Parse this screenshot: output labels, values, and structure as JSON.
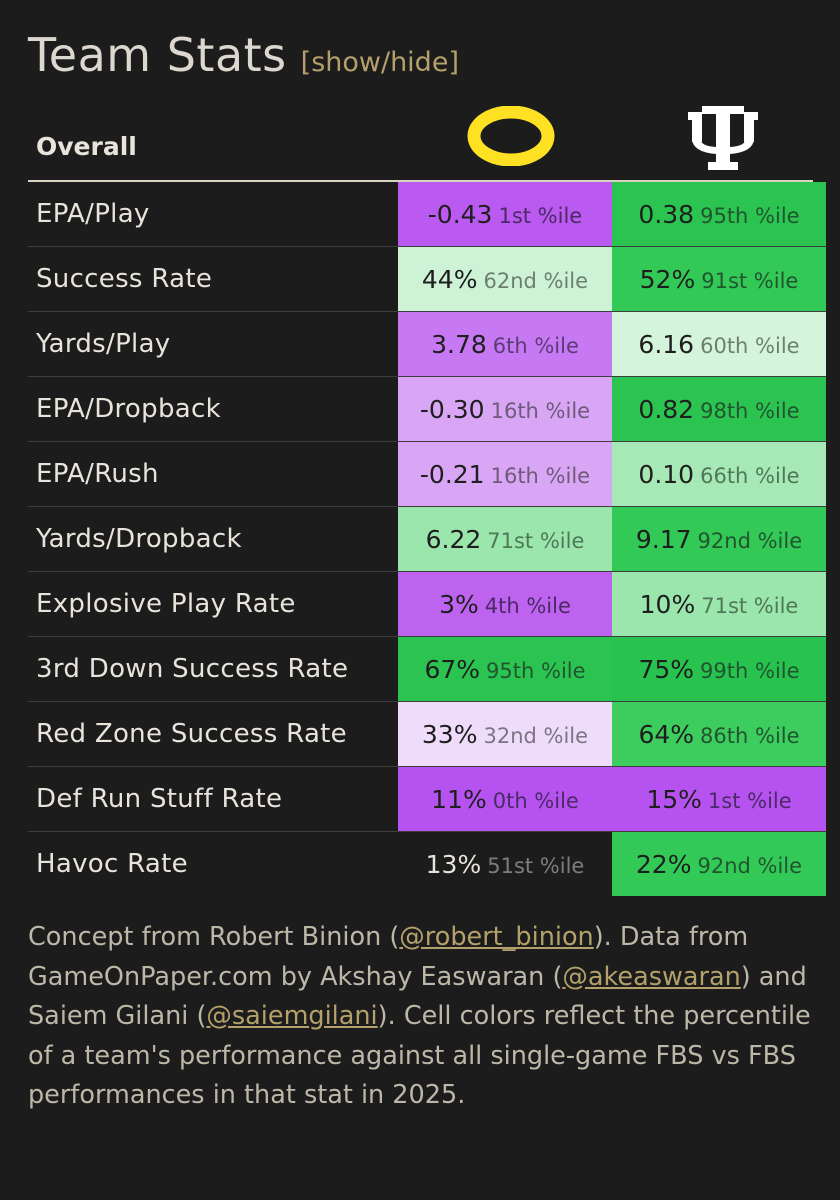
{
  "title": "Team Stats",
  "toggle": {
    "open": "[",
    "label": "show/hide",
    "close": "]"
  },
  "header": {
    "section_label": "Overall"
  },
  "teams": [
    {
      "logo": "oregon-o-logo",
      "color": "#fee123",
      "logo_text": "O"
    },
    {
      "logo": "indiana-iu-logo",
      "color": "#ffffff",
      "logo_text": "IU"
    }
  ],
  "rows": [
    {
      "stat": "EPA/Play",
      "a": {
        "value": "-0.43",
        "pct": "1st %ile",
        "bg": "#bb5af0",
        "fg": "#1e1e1e",
        "pfg": "#4b2a66"
      },
      "b": {
        "value": "0.38",
        "pct": "95th %ile",
        "bg": "#2bc451",
        "fg": "#1e1e1e",
        "pfg": "#21552f"
      }
    },
    {
      "stat": "Success Rate",
      "a": {
        "value": "44%",
        "pct": "62nd %ile",
        "bg": "#cdf2d6",
        "fg": "#1e1e1e",
        "pfg": "#6d8070"
      },
      "b": {
        "value": "52%",
        "pct": "91st %ile",
        "bg": "#33c957",
        "fg": "#1e1e1e",
        "pfg": "#21552f"
      }
    },
    {
      "stat": "Yards/Play",
      "a": {
        "value": "3.78",
        "pct": "6th %ile",
        "bg": "#c679f2",
        "fg": "#1e1e1e",
        "pfg": "#5d3a78"
      },
      "b": {
        "value": "6.16",
        "pct": "60th %ile",
        "bg": "#d4f4db",
        "fg": "#1e1e1e",
        "pfg": "#6d8070"
      }
    },
    {
      "stat": "EPA/Dropback",
      "a": {
        "value": "-0.30",
        "pct": "16th %ile",
        "bg": "#d8a6f5",
        "fg": "#1e1e1e",
        "pfg": "#6e5a7a"
      },
      "b": {
        "value": "0.82",
        "pct": "98th %ile",
        "bg": "#2bc451",
        "fg": "#1e1e1e",
        "pfg": "#21552f"
      }
    },
    {
      "stat": "EPA/Rush",
      "a": {
        "value": "-0.21",
        "pct": "16th %ile",
        "bg": "#d8a6f5",
        "fg": "#1e1e1e",
        "pfg": "#6e5a7a"
      },
      "b": {
        "value": "0.10",
        "pct": "66th %ile",
        "bg": "#a7e9b6",
        "fg": "#1e1e1e",
        "pfg": "#4f7858"
      }
    },
    {
      "stat": "Yards/Dropback",
      "a": {
        "value": "6.22",
        "pct": "71st %ile",
        "bg": "#9ae6ac",
        "fg": "#1e1e1e",
        "pfg": "#4f7858"
      },
      "b": {
        "value": "9.17",
        "pct": "92nd %ile",
        "bg": "#33c957",
        "fg": "#1e1e1e",
        "pfg": "#21552f"
      }
    },
    {
      "stat": "Explosive Play Rate",
      "a": {
        "value": "3%",
        "pct": "4th %ile",
        "bg": "#be62f0",
        "fg": "#1e1e1e",
        "pfg": "#4b2a66"
      },
      "b": {
        "value": "10%",
        "pct": "71st %ile",
        "bg": "#9ae6ac",
        "fg": "#1e1e1e",
        "pfg": "#4f7858"
      }
    },
    {
      "stat": "3rd Down Success Rate",
      "a": {
        "value": "67%",
        "pct": "95th %ile",
        "bg": "#2bc451",
        "fg": "#1e1e1e",
        "pfg": "#21552f"
      },
      "b": {
        "value": "75%",
        "pct": "99th %ile",
        "bg": "#28c24e",
        "fg": "#1e1e1e",
        "pfg": "#21552f"
      }
    },
    {
      "stat": "Red Zone Success Rate",
      "a": {
        "value": "33%",
        "pct": "32nd %ile",
        "bg": "#efdcfb",
        "fg": "#1e1e1e",
        "pfg": "#7c7585"
      },
      "b": {
        "value": "64%",
        "pct": "86th %ile",
        "bg": "#3ccd5e",
        "fg": "#1e1e1e",
        "pfg": "#21552f"
      }
    },
    {
      "stat": "Def Run Stuff Rate",
      "a": {
        "value": "11%",
        "pct": "0th %ile",
        "bg": "#b653f0",
        "fg": "#1e1e1e",
        "pfg": "#4b2a66"
      },
      "b": {
        "value": "15%",
        "pct": "1st %ile",
        "bg": "#b653f0",
        "fg": "#1e1e1e",
        "pfg": "#4b2a66"
      }
    },
    {
      "stat": "Havoc Rate",
      "a": {
        "value": "13%",
        "pct": "51st %ile",
        "bg": "#1c1c1c",
        "fg": "#e8e4dc",
        "pfg": "#7d7d7d"
      },
      "b": {
        "value": "22%",
        "pct": "92nd %ile",
        "bg": "#33c957",
        "fg": "#1e1e1e",
        "pfg": "#21552f"
      }
    }
  ],
  "footer": {
    "t1": "Concept from Robert Binion (",
    "l1": "@robert_binion",
    "t2": "). Data from GameOnPaper.com by Akshay Easwaran (",
    "l2": "@akeaswaran",
    "t3": ") and Saiem Gilani (",
    "l3": "@saiemgilani",
    "t4": "). Cell colors reflect the percentile of a team's performance against all single-game FBS vs FBS performances in that stat in 2025."
  }
}
